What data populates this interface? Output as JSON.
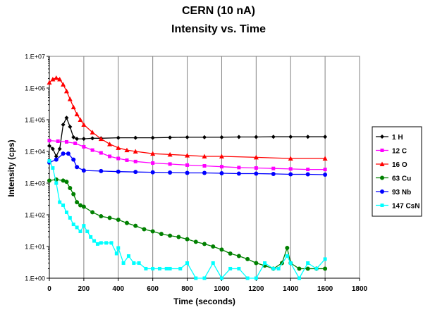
{
  "chart_data": {
    "type": "line",
    "title": "CERN (10 nA)",
    "subtitle": "Intensity vs. Time",
    "xlabel": "Time (seconds)",
    "ylabel": "Intensity (cps)",
    "xlim": [
      0,
      1800
    ],
    "xticks": [
      0,
      200,
      400,
      600,
      800,
      1000,
      1200,
      1400,
      1600,
      1800
    ],
    "x_tick_labels": [
      "0",
      "200",
      "400",
      "600",
      "800",
      "1000",
      "1200",
      "1400",
      "1600",
      "1800"
    ],
    "y_scale": "log",
    "ylim": [
      1,
      10000000
    ],
    "yticks": [
      1,
      10,
      100,
      1000,
      10000,
      100000,
      1000000,
      10000000
    ],
    "y_tick_labels": [
      "1.E+00",
      "1.E+01",
      "1.E+02",
      "1.E+03",
      "1.E+04",
      "1.E+05",
      "1.E+06",
      "1.E+07"
    ],
    "grid": "vertical",
    "legend_position": "right",
    "series": [
      {
        "name": "1 H",
        "color": "#000000",
        "marker": "diamond",
        "points": [
          [
            0,
            15000
          ],
          [
            20,
            12000
          ],
          [
            40,
            7000
          ],
          [
            60,
            12000
          ],
          [
            80,
            70000
          ],
          [
            100,
            115000
          ],
          [
            120,
            60000
          ],
          [
            140,
            28000
          ],
          [
            160,
            25000
          ],
          [
            200,
            25000
          ],
          [
            250,
            26000
          ],
          [
            300,
            26000
          ],
          [
            400,
            27000
          ],
          [
            500,
            27000
          ],
          [
            600,
            27000
          ],
          [
            700,
            27500
          ],
          [
            800,
            28000
          ],
          [
            900,
            28000
          ],
          [
            1000,
            28000
          ],
          [
            1100,
            28500
          ],
          [
            1200,
            28500
          ],
          [
            1300,
            29000
          ],
          [
            1400,
            29000
          ],
          [
            1500,
            29000
          ],
          [
            1600,
            29000
          ]
        ]
      },
      {
        "name": "12 C",
        "color": "#ff00ff",
        "marker": "square",
        "points": [
          [
            0,
            22000
          ],
          [
            50,
            21000
          ],
          [
            100,
            20000
          ],
          [
            150,
            18000
          ],
          [
            200,
            14000
          ],
          [
            250,
            11000
          ],
          [
            300,
            9000
          ],
          [
            350,
            7000
          ],
          [
            400,
            6000
          ],
          [
            450,
            5300
          ],
          [
            500,
            4800
          ],
          [
            600,
            4300
          ],
          [
            700,
            4000
          ],
          [
            800,
            3700
          ],
          [
            900,
            3500
          ],
          [
            1000,
            3300
          ],
          [
            1100,
            3100
          ],
          [
            1200,
            3000
          ],
          [
            1300,
            2900
          ],
          [
            1400,
            2800
          ],
          [
            1500,
            2700
          ],
          [
            1600,
            2700
          ]
        ]
      },
      {
        "name": "16 O",
        "color": "#ff0000",
        "marker": "triangle",
        "points": [
          [
            0,
            1500000
          ],
          [
            20,
            1900000
          ],
          [
            40,
            2100000
          ],
          [
            60,
            1900000
          ],
          [
            80,
            1300000
          ],
          [
            100,
            800000
          ],
          [
            120,
            450000
          ],
          [
            140,
            250000
          ],
          [
            160,
            150000
          ],
          [
            180,
            100000
          ],
          [
            200,
            70000
          ],
          [
            250,
            40000
          ],
          [
            300,
            25000
          ],
          [
            350,
            17000
          ],
          [
            400,
            13000
          ],
          [
            450,
            11000
          ],
          [
            500,
            10000
          ],
          [
            600,
            8500
          ],
          [
            700,
            8000
          ],
          [
            800,
            7500
          ],
          [
            900,
            7000
          ],
          [
            1000,
            7000
          ],
          [
            1200,
            6500
          ],
          [
            1400,
            6000
          ],
          [
            1600,
            6000
          ]
        ]
      },
      {
        "name": "63 Cu",
        "color": "#008000",
        "marker": "circle",
        "points": [
          [
            0,
            1200
          ],
          [
            40,
            1300
          ],
          [
            80,
            1200
          ],
          [
            100,
            1100
          ],
          [
            120,
            700
          ],
          [
            140,
            450
          ],
          [
            160,
            250
          ],
          [
            180,
            200
          ],
          [
            200,
            180
          ],
          [
            250,
            120
          ],
          [
            300,
            90
          ],
          [
            350,
            80
          ],
          [
            400,
            70
          ],
          [
            450,
            55
          ],
          [
            500,
            45
          ],
          [
            550,
            35
          ],
          [
            600,
            30
          ],
          [
            650,
            25
          ],
          [
            700,
            22
          ],
          [
            750,
            20
          ],
          [
            800,
            17
          ],
          [
            850,
            14
          ],
          [
            900,
            12
          ],
          [
            950,
            10
          ],
          [
            1000,
            8
          ],
          [
            1050,
            6
          ],
          [
            1100,
            5
          ],
          [
            1150,
            4
          ],
          [
            1200,
            3
          ],
          [
            1250,
            2.5
          ],
          [
            1300,
            2
          ],
          [
            1350,
            3
          ],
          [
            1380,
            9
          ],
          [
            1400,
            3
          ],
          [
            1450,
            2
          ],
          [
            1500,
            2
          ],
          [
            1550,
            2
          ],
          [
            1600,
            2
          ]
        ]
      },
      {
        "name": "93 Nb",
        "color": "#0000ff",
        "marker": "circle",
        "points": [
          [
            0,
            4500
          ],
          [
            40,
            5500
          ],
          [
            80,
            8500
          ],
          [
            110,
            8500
          ],
          [
            140,
            5500
          ],
          [
            160,
            3200
          ],
          [
            200,
            2500
          ],
          [
            300,
            2400
          ],
          [
            400,
            2300
          ],
          [
            500,
            2250
          ],
          [
            600,
            2200
          ],
          [
            700,
            2150
          ],
          [
            800,
            2100
          ],
          [
            900,
            2100
          ],
          [
            1000,
            2050
          ],
          [
            1100,
            2000
          ],
          [
            1200,
            2000
          ],
          [
            1300,
            1950
          ],
          [
            1400,
            1900
          ],
          [
            1500,
            1900
          ],
          [
            1600,
            1850
          ]
        ]
      },
      {
        "name": "147 CsN",
        "color": "#00ffff",
        "marker": "square",
        "points": [
          [
            0,
            5000
          ],
          [
            20,
            3000
          ],
          [
            40,
            1000
          ],
          [
            60,
            250
          ],
          [
            80,
            200
          ],
          [
            100,
            120
          ],
          [
            120,
            80
          ],
          [
            140,
            50
          ],
          [
            160,
            40
          ],
          [
            180,
            30
          ],
          [
            200,
            45
          ],
          [
            220,
            30
          ],
          [
            240,
            20
          ],
          [
            260,
            15
          ],
          [
            280,
            12
          ],
          [
            300,
            13
          ],
          [
            330,
            13
          ],
          [
            360,
            13
          ],
          [
            390,
            6
          ],
          [
            400,
            9
          ],
          [
            430,
            3
          ],
          [
            460,
            5
          ],
          [
            490,
            3
          ],
          [
            520,
            3
          ],
          [
            560,
            2
          ],
          [
            600,
            2
          ],
          [
            640,
            2
          ],
          [
            680,
            2
          ],
          [
            700,
            2
          ],
          [
            760,
            2
          ],
          [
            800,
            3
          ],
          [
            850,
            1
          ],
          [
            900,
            1
          ],
          [
            950,
            3
          ],
          [
            1000,
            1
          ],
          [
            1050,
            2
          ],
          [
            1100,
            2
          ],
          [
            1150,
            1
          ],
          [
            1200,
            1
          ],
          [
            1250,
            3
          ],
          [
            1300,
            2
          ],
          [
            1330,
            2
          ],
          [
            1380,
            5
          ],
          [
            1400,
            3
          ],
          [
            1450,
            1
          ],
          [
            1500,
            3
          ],
          [
            1550,
            2
          ],
          [
            1600,
            4
          ]
        ]
      }
    ]
  }
}
